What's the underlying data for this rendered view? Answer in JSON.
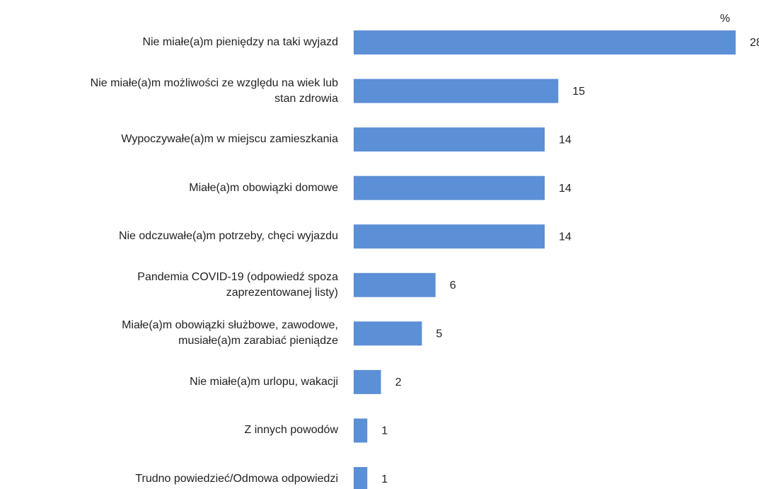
{
  "chart_data": {
    "type": "bar",
    "orientation": "horizontal",
    "unit": "%",
    "categories": [
      "Nie miałe(a)m pieniędzy na taki wyjazd",
      "Nie miałe(a)m możliwości ze względu na wiek lub\nstan zdrowia",
      "Wypoczywałe(a)m w miejscu zamieszkania",
      "Miałe(a)m obowiązki domowe",
      "Nie odczuwałe(a)m potrzeby, chęci wyjazdu",
      "Pandemia COVID-19 (odpowiedź spoza\nzaprezentowanej listy)",
      "Miałe(a)m obowiązki służbowe, zawodowe,\nmusiałe(a)m zarabiać pieniądze",
      "Nie miałe(a)m urlopu, wakacji",
      "Z innych powodów",
      "Trudno powiedzieć/Odmowa odpowiedzi"
    ],
    "values": [
      28,
      15,
      14,
      14,
      14,
      6,
      5,
      2,
      1,
      1
    ],
    "color": "#5b8fd6"
  }
}
